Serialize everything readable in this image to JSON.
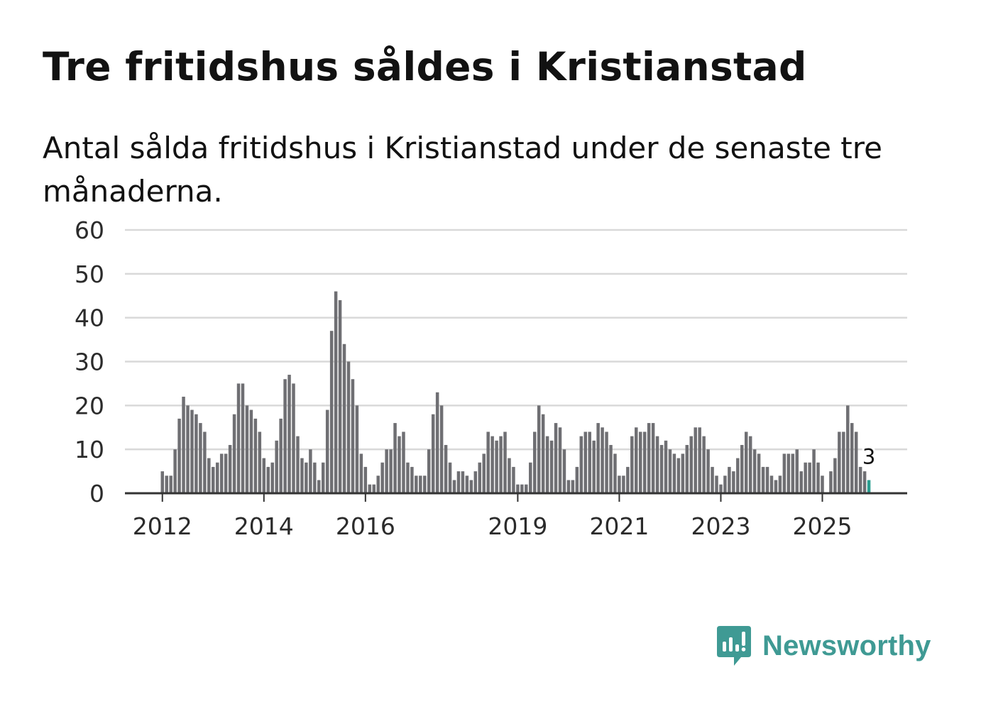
{
  "title": "Tre fritidshus såldes i Kristianstad",
  "subtitle": "Antal sålda fritidshus i Kristianstad under de senaste tre månaderna.",
  "brand": {
    "name": "Newsworthy",
    "color": "#3f9a94",
    "icon": "newsworthy-chat-bars-icon"
  },
  "colors": {
    "bar": "#6f6f73",
    "highlight": "#2a9d8f",
    "grid": "#d9d9d9",
    "axis": "#333333"
  },
  "chart_data": {
    "type": "bar",
    "title": "Tre fritidshus såldes i Kristianstad",
    "xlabel": "",
    "ylabel": "",
    "ylim": [
      0,
      60
    ],
    "yticks": [
      0,
      10,
      20,
      30,
      40,
      50,
      60
    ],
    "xticks": [
      {
        "label": "2012",
        "index": 0
      },
      {
        "label": "2014",
        "index": 24
      },
      {
        "label": "2016",
        "index": 48
      },
      {
        "label": "2019",
        "index": 84
      },
      {
        "label": "2021",
        "index": 108
      },
      {
        "label": "2023",
        "index": 132
      },
      {
        "label": "2025",
        "index": 156
      }
    ],
    "start": "2012-01",
    "values": [
      5,
      4,
      4,
      10,
      17,
      22,
      20,
      19,
      18,
      16,
      14,
      8,
      6,
      7,
      9,
      9,
      11,
      18,
      25,
      25,
      20,
      19,
      17,
      14,
      8,
      6,
      7,
      12,
      17,
      26,
      27,
      25,
      13,
      8,
      7,
      10,
      7,
      3,
      7,
      19,
      37,
      46,
      44,
      34,
      30,
      26,
      20,
      9,
      6,
      2,
      2,
      4,
      7,
      10,
      10,
      16,
      13,
      14,
      7,
      6,
      4,
      4,
      4,
      10,
      18,
      23,
      20,
      11,
      7,
      3,
      5,
      5,
      4,
      3,
      5,
      7,
      9,
      14,
      13,
      12,
      13,
      14,
      8,
      6,
      2,
      2,
      2,
      7,
      14,
      20,
      18,
      13,
      12,
      16,
      15,
      10,
      3,
      3,
      6,
      13,
      14,
      14,
      12,
      16,
      15,
      14,
      11,
      9,
      4,
      4,
      6,
      13,
      15,
      14,
      14,
      16,
      16,
      13,
      11,
      12,
      10,
      9,
      8,
      9,
      11,
      13,
      15,
      15,
      13,
      10,
      6,
      4,
      2,
      4,
      6,
      5,
      8,
      11,
      14,
      13,
      10,
      9,
      6,
      6,
      4,
      3,
      4,
      9,
      9,
      9,
      10,
      5,
      7,
      7,
      10,
      7,
      4,
      null,
      5,
      8,
      14,
      14,
      20,
      16,
      14,
      6,
      5,
      3
    ],
    "highlight_last": 1,
    "annotation": {
      "label": "3",
      "value": 3
    }
  }
}
